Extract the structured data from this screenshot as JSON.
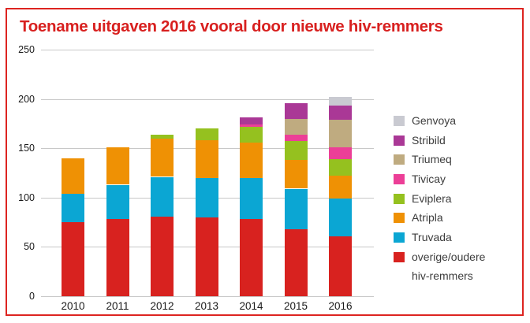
{
  "frame": {
    "border_color": "#dd2420",
    "background": "#ffffff"
  },
  "title": {
    "text": "Toename uitgaven 2016 vooral door nieuwe hiv-remmers",
    "color": "#d8201f"
  },
  "chart_data": {
    "type": "bar",
    "stacked": true,
    "title": "Toename uitgaven 2016 vooral door nieuwe hiv-remmers",
    "xlabel": "",
    "ylabel": "",
    "categories": [
      "2010",
      "2011",
      "2012",
      "2013",
      "2014",
      "2015",
      "2016"
    ],
    "series": [
      {
        "name": "overige/oudere hiv-remmers",
        "color": "#d8221f",
        "values": [
          75,
          78,
          81,
          80,
          78,
          68,
          61
        ]
      },
      {
        "name": "Truvada",
        "color": "#0ba6d3",
        "values": [
          29,
          35,
          40,
          40,
          42,
          41,
          38
        ]
      },
      {
        "name": "Atripla",
        "color": "#ef9104",
        "values": [
          36,
          38,
          39,
          38,
          36,
          29,
          23
        ]
      },
      {
        "name": "Eviplera",
        "color": "#95c11f",
        "values": [
          0,
          0,
          4,
          12,
          16,
          19,
          17
        ]
      },
      {
        "name": "Tivicay",
        "color": "#ec3f97",
        "values": [
          0,
          0,
          0,
          0,
          2,
          7,
          12
        ]
      },
      {
        "name": "Triumeq",
        "color": "#bfab80",
        "values": [
          0,
          0,
          0,
          0,
          0,
          16,
          28
        ]
      },
      {
        "name": "Stribild",
        "color": "#aa3896",
        "values": [
          0,
          0,
          0,
          0,
          7,
          16,
          14
        ]
      },
      {
        "name": "Genvoya",
        "color": "#c9cad1",
        "values": [
          0,
          0,
          0,
          0,
          0,
          0,
          9
        ]
      }
    ],
    "totals": [
      140,
      151,
      164,
      170,
      181,
      196,
      202
    ],
    "ylim": [
      0,
      250
    ],
    "yticks": [
      0,
      50,
      100,
      150,
      200,
      250
    ],
    "grid": true,
    "gridline_color": "#c8c8c8",
    "legend_position": "right",
    "legend_order_top_to_bottom": [
      "Genvoya",
      "Stribild",
      "Triumeq",
      "Tivicay",
      "Eviplera",
      "Atripla",
      "Truvada",
      "overige/oudere hiv-remmers"
    ]
  }
}
